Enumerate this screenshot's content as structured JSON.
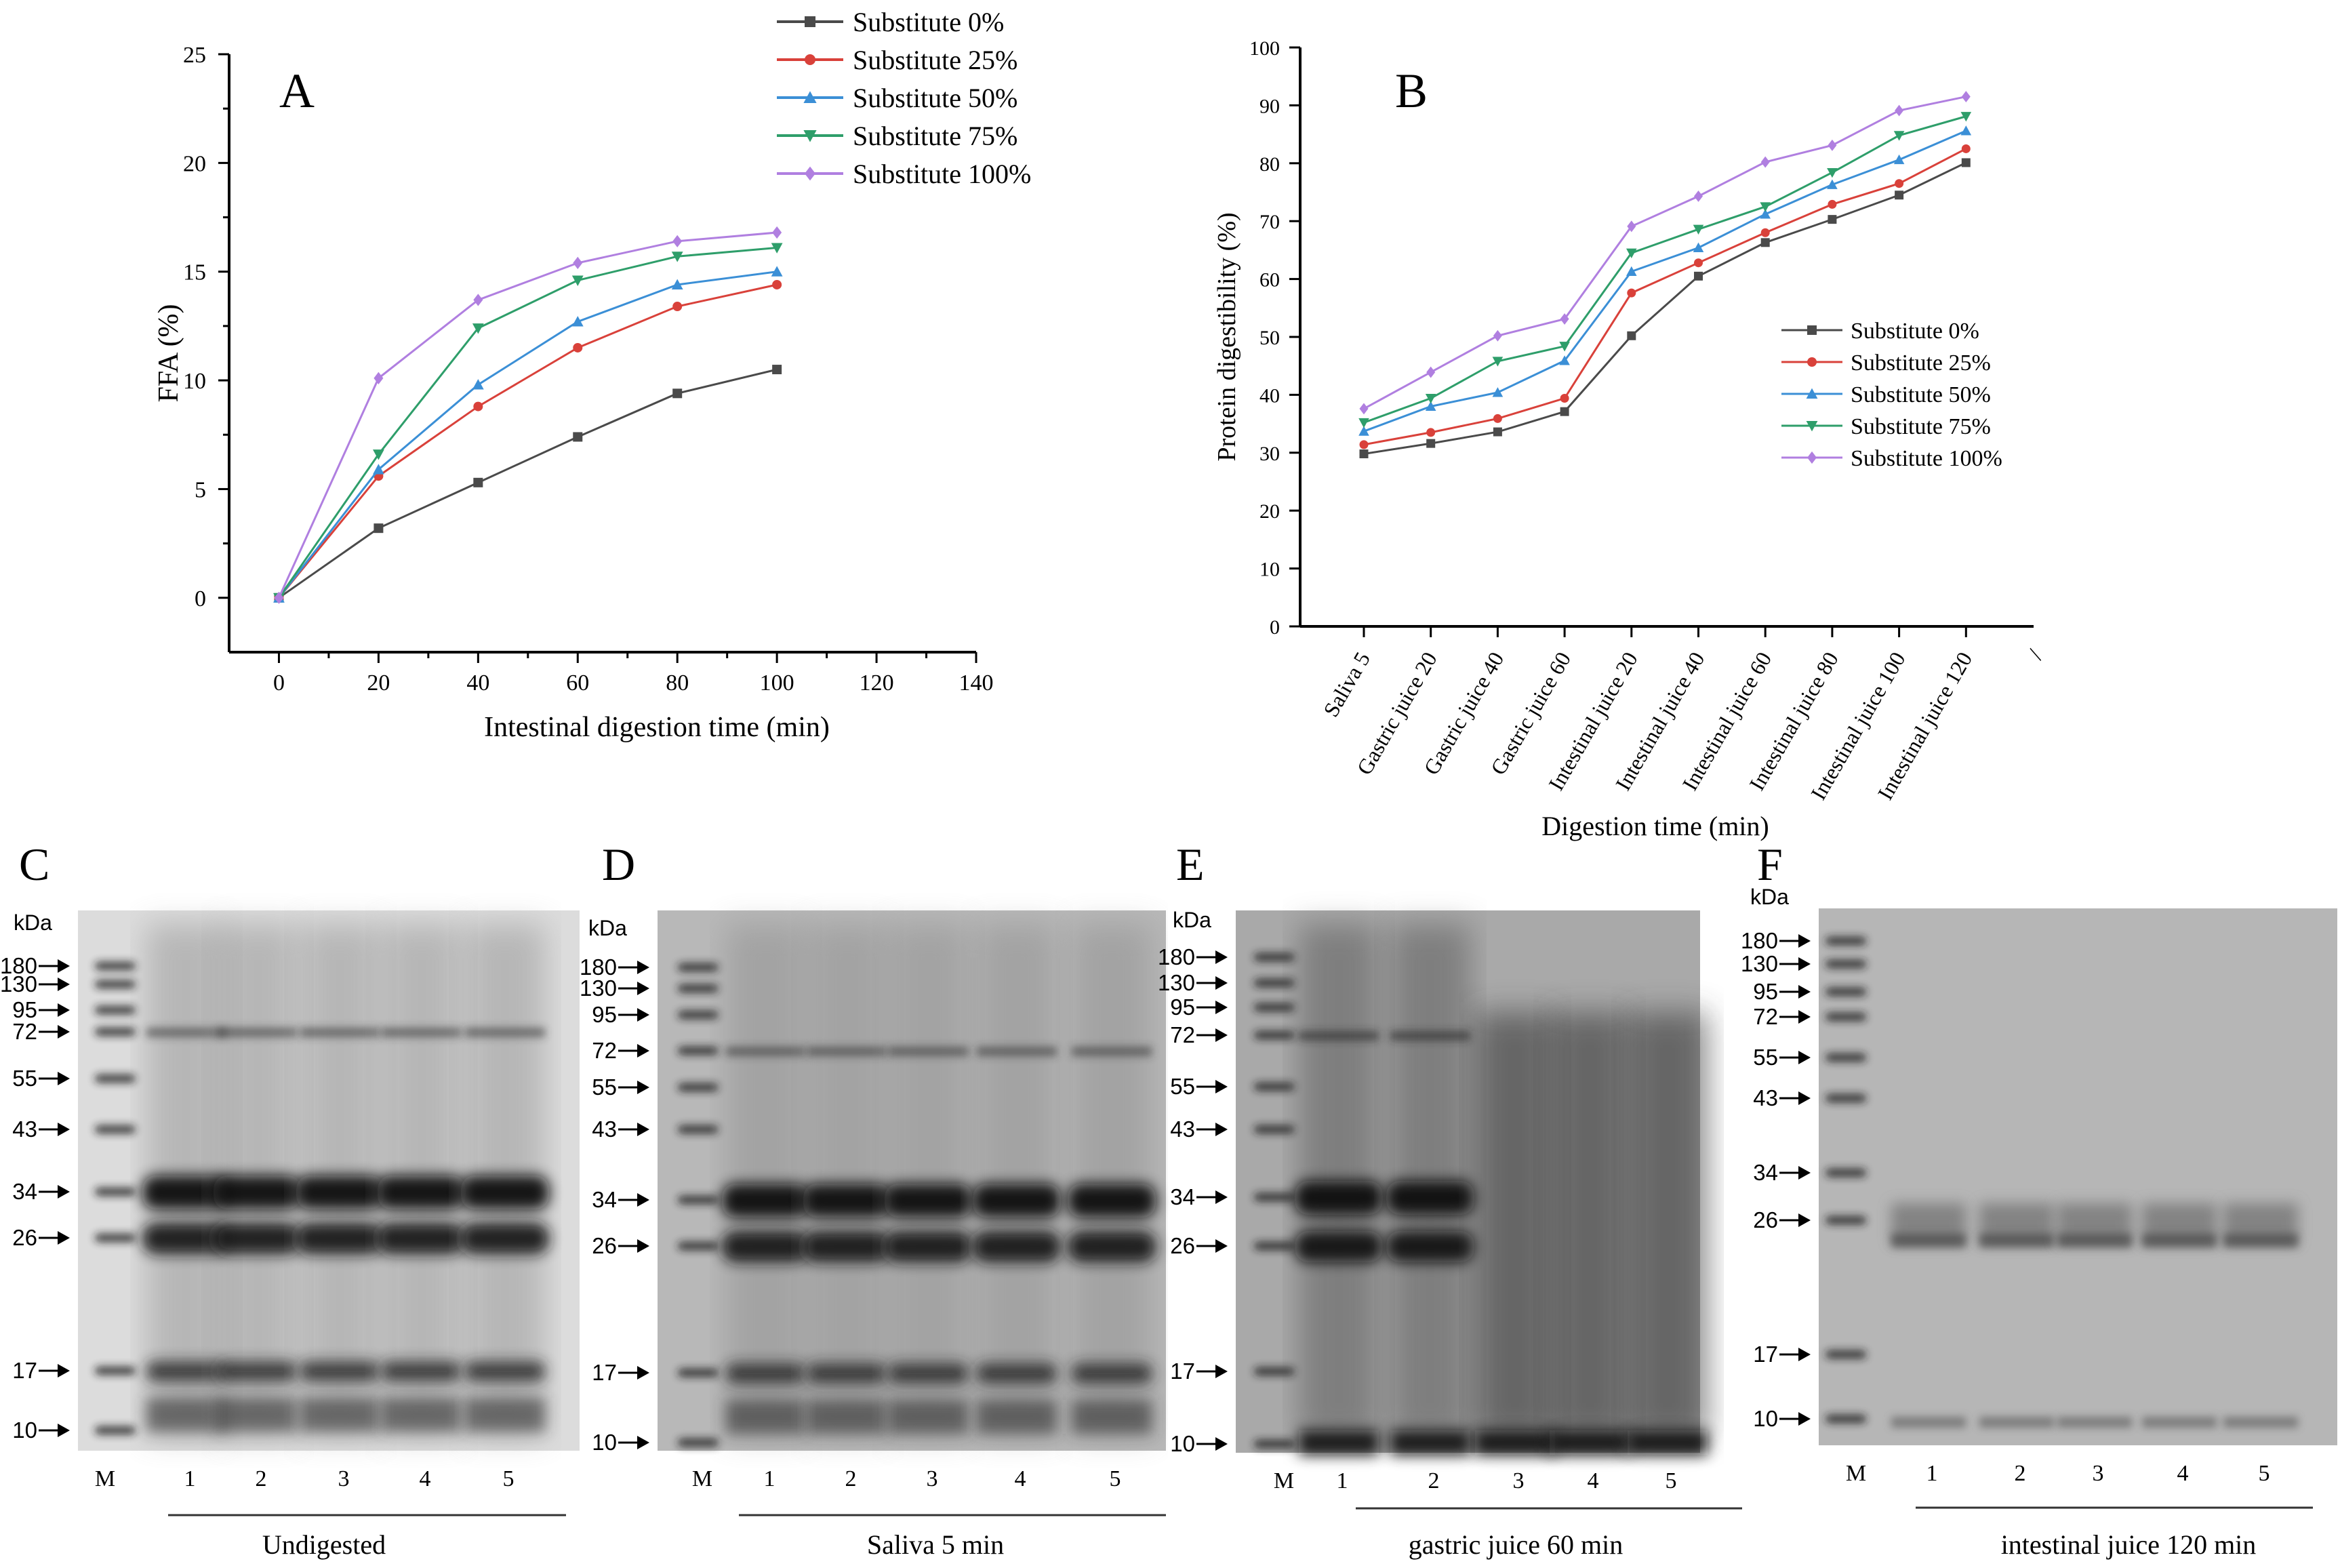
{
  "chart_data": [
    {
      "type": "line",
      "panel": "A",
      "xlabel": "Intestinal digestion time (min)",
      "ylabel": "FFA (%)",
      "xlim": [
        -10,
        140
      ],
      "ylim": [
        -2.5,
        25
      ],
      "xticks": [
        "0",
        "20",
        "40",
        "60",
        "80",
        "100",
        "120",
        "140"
      ],
      "yticks": [
        "0",
        "5",
        "10",
        "15",
        "20",
        "25"
      ],
      "legend_position": "top-right",
      "x": [
        0,
        20,
        40,
        60,
        80,
        100
      ],
      "series": [
        {
          "name": "Substitute 0%",
          "color": "#4a4a4a",
          "marker": "square",
          "values": [
            0,
            3.2,
            5.3,
            7.4,
            9.4,
            10.5
          ]
        },
        {
          "name": "Substitute 25%",
          "color": "#d9413a",
          "marker": "circle",
          "values": [
            0,
            5.6,
            8.8,
            11.5,
            13.4,
            14.4
          ]
        },
        {
          "name": "Substitute 50%",
          "color": "#3b8fd6",
          "marker": "triangle-up",
          "values": [
            0,
            5.9,
            9.8,
            12.7,
            14.4,
            15.0
          ]
        },
        {
          "name": "Substitute 75%",
          "color": "#2e9e6a",
          "marker": "triangle-down",
          "values": [
            0,
            6.6,
            12.4,
            14.6,
            15.7,
            16.1
          ]
        },
        {
          "name": "Substitute 100%",
          "color": "#b07fe0",
          "marker": "diamond",
          "values": [
            0,
            10.1,
            13.7,
            15.4,
            16.4,
            16.8
          ]
        }
      ]
    },
    {
      "type": "line",
      "panel": "B",
      "xlabel": "Digestion time (min)",
      "ylabel": "Protein digestibility (%)",
      "ylim": [
        0,
        100
      ],
      "yticks": [
        "0",
        "10",
        "20",
        "30",
        "40",
        "50",
        "60",
        "70",
        "80",
        "90",
        "100"
      ],
      "categories": [
        "Saliva 5",
        "Gastric juice 20",
        "Gastric juice 40",
        "Gastric juice 60",
        "Intestinal juice 20",
        "Intestinal juice 40",
        "Intestinal juice 60",
        "Intestinal juice 80",
        "Intestinal juice 100",
        "Intestinal juice 120"
      ],
      "legend_position": "center-right",
      "series": [
        {
          "name": "Substitute 0%",
          "color": "#4a4a4a",
          "marker": "square",
          "values": [
            29.8,
            31.6,
            33.6,
            37.1,
            50.2,
            60.5,
            66.3,
            70.3,
            74.5,
            80.1
          ]
        },
        {
          "name": "Substitute 25%",
          "color": "#d9413a",
          "marker": "circle",
          "values": [
            31.4,
            33.5,
            35.9,
            39.4,
            57.6,
            62.8,
            68.0,
            72.9,
            76.5,
            82.5
          ]
        },
        {
          "name": "Substitute 50%",
          "color": "#3b8fd6",
          "marker": "triangle-up",
          "values": [
            33.7,
            38.0,
            40.4,
            45.9,
            61.3,
            65.4,
            71.2,
            76.3,
            80.6,
            85.6
          ]
        },
        {
          "name": "Substitute 75%",
          "color": "#2e9e6a",
          "marker": "triangle-down",
          "values": [
            35.2,
            39.4,
            45.8,
            48.4,
            64.5,
            68.6,
            72.5,
            78.4,
            84.8,
            88.1
          ]
        },
        {
          "name": "Substitute 100%",
          "color": "#b07fe0",
          "marker": "diamond",
          "values": [
            37.6,
            43.9,
            50.2,
            53.1,
            69.1,
            74.3,
            80.2,
            83.1,
            89.1,
            91.5
          ]
        }
      ]
    }
  ],
  "panels": {
    "A": {
      "label": "A"
    },
    "B": {
      "label": "B",
      "tick_extra": "/"
    }
  },
  "gels": [
    {
      "label": "C",
      "kda": "kDa",
      "markers": [
        "180",
        "130",
        "95",
        "72",
        "55",
        "43",
        "34",
        "26",
        "17",
        "10"
      ],
      "lanes": [
        "M",
        "1",
        "2",
        "3",
        "4",
        "5"
      ],
      "caption": "Undigested"
    },
    {
      "label": "D",
      "kda": "kDa",
      "markers": [
        "180",
        "130",
        "95",
        "72",
        "55",
        "43",
        "34",
        "26",
        "17",
        "10"
      ],
      "lanes": [
        "M",
        "1",
        "2",
        "3",
        "4",
        "5"
      ],
      "caption": "Saliva  5 min"
    },
    {
      "label": "E",
      "kda": "kDa",
      "markers": [
        "180",
        "130",
        "95",
        "72",
        "55",
        "43",
        "34",
        "26",
        "17",
        "10"
      ],
      "lanes": [
        "M",
        "1",
        "2",
        "3",
        "4",
        "5"
      ],
      "caption": "gastric juice 60 min"
    },
    {
      "label": "F",
      "kda": "kDa",
      "markers": [
        "180",
        "130",
        "95",
        "72",
        "55",
        "43",
        "34",
        "26",
        "17",
        "10"
      ],
      "lanes": [
        "M",
        "1",
        "2",
        "3",
        "4",
        "5"
      ],
      "caption": "intestinal juice 120 min"
    }
  ]
}
